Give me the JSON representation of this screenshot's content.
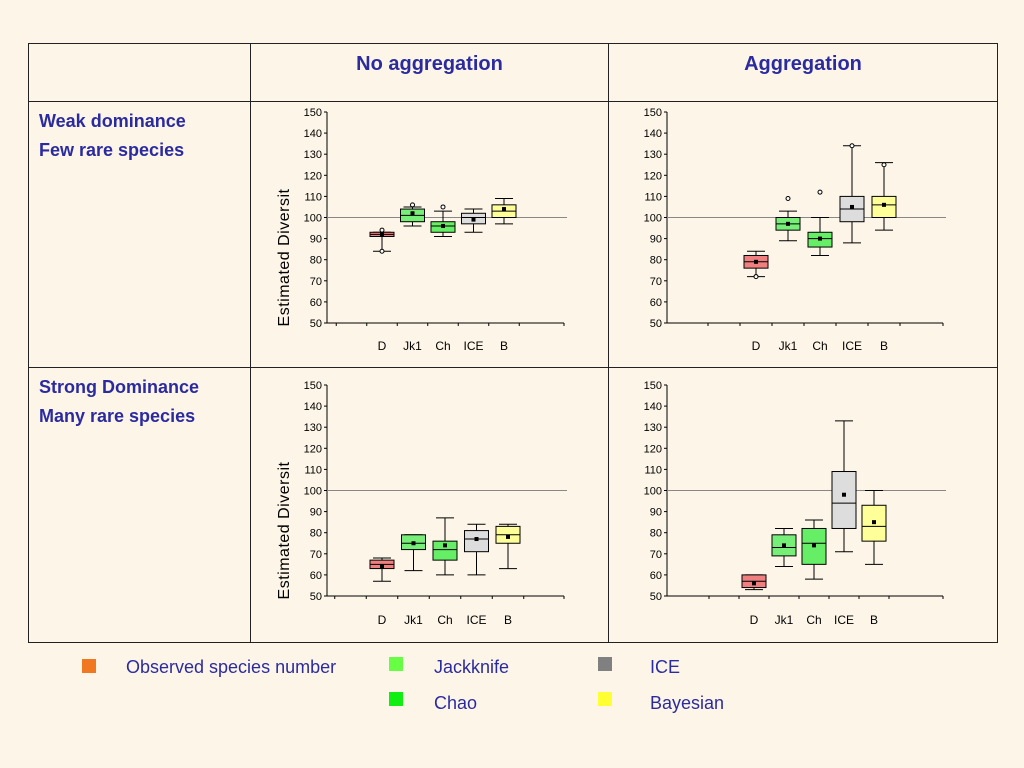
{
  "header": {
    "no_aggregation": "No aggregation",
    "aggregation": "Aggregation"
  },
  "rows": [
    {
      "line1": "Weak dominance",
      "line2": "Few rare species"
    },
    {
      "line1": "Strong Dominance",
      "line2": "Many rare species"
    }
  ],
  "legend": [
    {
      "label": "Observed species number",
      "color": "#f07820"
    },
    {
      "label": "Jackknife",
      "color": "#66ff44"
    },
    {
      "label": "ICE",
      "color": "#808080"
    },
    {
      "label": "Chao",
      "color": "#11ee11"
    },
    {
      "label": "Bayesian",
      "color": "#ffff33"
    }
  ],
  "chart_data": [
    {
      "type": "box",
      "panel": "weak-dominance-no-aggregation",
      "ylabel": "Estimated Diversit",
      "ylim": [
        50,
        150
      ],
      "yticks": [
        50,
        60,
        70,
        80,
        90,
        100,
        110,
        120,
        130,
        140,
        150
      ],
      "reference_line": 100,
      "categories": [
        "D",
        "Jk1",
        "Ch",
        "ICE",
        "B"
      ],
      "colors": [
        "#f08080",
        "#77ee77",
        "#66ee66",
        "#dddddd",
        "#ffff99"
      ],
      "boxes": [
        {
          "min": 84,
          "q1": 91,
          "median": 92,
          "q3": 93,
          "max": 93,
          "mean": 92,
          "outliers": [
            84,
            94
          ]
        },
        {
          "min": 96,
          "q1": 98,
          "median": 101,
          "q3": 104,
          "max": 105,
          "mean": 102,
          "outliers": [
            106
          ]
        },
        {
          "min": 91,
          "q1": 93,
          "median": 96,
          "q3": 98,
          "max": 103,
          "mean": 96,
          "outliers": [
            105
          ]
        },
        {
          "min": 93,
          "q1": 97,
          "median": 100,
          "q3": 102,
          "max": 104,
          "mean": 99,
          "outliers": []
        },
        {
          "min": 97,
          "q1": 100,
          "median": 103,
          "q3": 106,
          "max": 109,
          "mean": 104,
          "outliers": []
        }
      ]
    },
    {
      "type": "box",
      "panel": "weak-dominance-aggregation",
      "ylabel": "",
      "ylim": [
        50,
        150
      ],
      "yticks": [
        50,
        60,
        70,
        80,
        90,
        100,
        110,
        120,
        130,
        140,
        150
      ],
      "reference_line": 100,
      "categories": [
        "D",
        "Jk1",
        "Ch",
        "ICE",
        "B"
      ],
      "colors": [
        "#f08080",
        "#77ee77",
        "#66ee66",
        "#dddddd",
        "#ffff99"
      ],
      "boxes": [
        {
          "min": 72,
          "q1": 76,
          "median": 79,
          "q3": 82,
          "max": 84,
          "mean": 79,
          "outliers": [
            72
          ]
        },
        {
          "min": 89,
          "q1": 94,
          "median": 97,
          "q3": 100,
          "max": 103,
          "mean": 97,
          "outliers": [
            109
          ]
        },
        {
          "min": 82,
          "q1": 86,
          "median": 90,
          "q3": 93,
          "max": 100,
          "mean": 90,
          "outliers": [
            112
          ]
        },
        {
          "min": 88,
          "q1": 98,
          "median": 104,
          "q3": 110,
          "max": 134,
          "mean": 105,
          "outliers": [
            134
          ]
        },
        {
          "min": 94,
          "q1": 100,
          "median": 106,
          "q3": 110,
          "max": 126,
          "mean": 106,
          "outliers": [
            125
          ]
        }
      ]
    },
    {
      "type": "box",
      "panel": "strong-dominance-no-aggregation",
      "ylabel": "Estimated Diversit",
      "ylim": [
        50,
        150
      ],
      "yticks": [
        50,
        60,
        70,
        80,
        90,
        100,
        110,
        120,
        130,
        140,
        150
      ],
      "reference_line": 100,
      "categories": [
        "D",
        "Jk1",
        "Ch",
        "ICE",
        "B"
      ],
      "colors": [
        "#f08080",
        "#77ee77",
        "#66ee66",
        "#dddddd",
        "#ffff99"
      ],
      "boxes": [
        {
          "min": 57,
          "q1": 63,
          "median": 65,
          "q3": 67,
          "max": 68,
          "mean": 64,
          "outliers": []
        },
        {
          "min": 62,
          "q1": 72,
          "median": 75,
          "q3": 79,
          "max": 79,
          "mean": 75,
          "outliers": []
        },
        {
          "min": 60,
          "q1": 67,
          "median": 72,
          "q3": 76,
          "max": 87,
          "mean": 74,
          "outliers": []
        },
        {
          "min": 60,
          "q1": 71,
          "median": 77,
          "q3": 81,
          "max": 84,
          "mean": 77,
          "outliers": []
        },
        {
          "min": 63,
          "q1": 75,
          "median": 79,
          "q3": 83,
          "max": 84,
          "mean": 78,
          "outliers": []
        }
      ]
    },
    {
      "type": "box",
      "panel": "strong-dominance-aggregation",
      "ylabel": "",
      "ylim": [
        50,
        150
      ],
      "yticks": [
        50,
        60,
        70,
        80,
        90,
        100,
        110,
        120,
        130,
        140,
        150
      ],
      "reference_line": 100,
      "categories": [
        "D",
        "Jk1",
        "Ch",
        "ICE",
        "B"
      ],
      "colors": [
        "#f08080",
        "#77ee77",
        "#66ee66",
        "#dddddd",
        "#ffff99"
      ],
      "boxes": [
        {
          "min": 53,
          "q1": 54,
          "median": 57,
          "q3": 60,
          "max": 60,
          "mean": 56,
          "outliers": []
        },
        {
          "min": 64,
          "q1": 69,
          "median": 73,
          "q3": 79,
          "max": 82,
          "mean": 74,
          "outliers": []
        },
        {
          "min": 58,
          "q1": 65,
          "median": 75,
          "q3": 82,
          "max": 86,
          "mean": 74,
          "outliers": []
        },
        {
          "min": 71,
          "q1": 82,
          "median": 94,
          "q3": 109,
          "max": 133,
          "mean": 98,
          "outliers": []
        },
        {
          "min": 65,
          "q1": 76,
          "median": 83,
          "q3": 93,
          "max": 100,
          "mean": 85,
          "outliers": []
        }
      ]
    }
  ]
}
